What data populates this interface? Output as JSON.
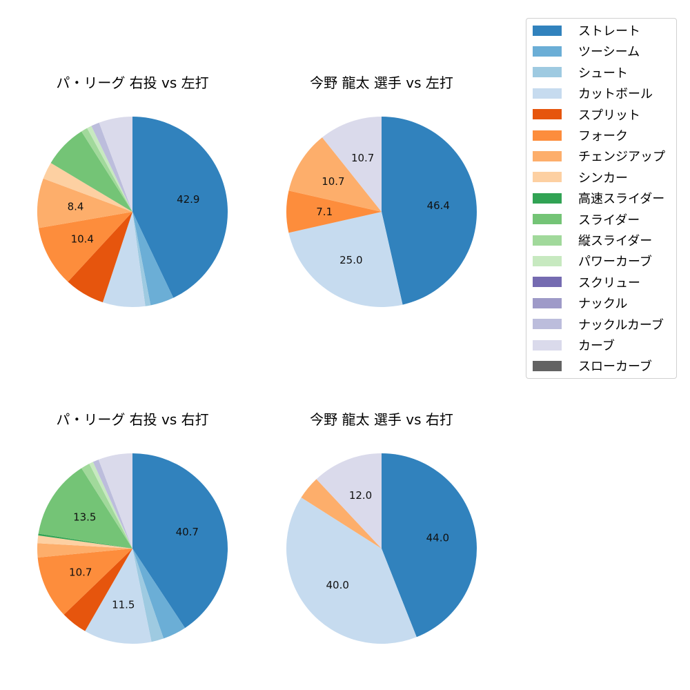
{
  "chart_data": [
    {
      "type": "pie",
      "title": "パ・リーグ 右投 vs 左打",
      "start_angle_deg": 90,
      "direction": "clockwise",
      "categories": [
        "ストレート",
        "ツーシーム",
        "シュート",
        "カットボール",
        "スプリット",
        "フォーク",
        "チェンジアップ",
        "シンカー",
        "スライダー",
        "縦スライダー",
        "パワーカーブ",
        "ナックルカーブ",
        "カーブ"
      ],
      "values": [
        42.9,
        4.0,
        0.9,
        7.2,
        6.8,
        10.4,
        8.4,
        2.9,
        7.4,
        1.1,
        0.8,
        1.4,
        5.7
      ],
      "labels_shown": [
        "42.9",
        "",
        "",
        "",
        "",
        "10.4",
        "8.4",
        "",
        "",
        "",
        "",
        "",
        ""
      ]
    },
    {
      "type": "pie",
      "title": "今野 龍太 選手 vs 左打",
      "start_angle_deg": 90,
      "direction": "clockwise",
      "categories": [
        "ストレート",
        "カットボール",
        "フォーク",
        "チェンジアップ",
        "カーブ"
      ],
      "values": [
        46.4,
        25.0,
        7.1,
        10.7,
        10.7
      ],
      "labels_shown": [
        "46.4",
        "25.0",
        "7.1",
        "10.7",
        "10.7"
      ]
    },
    {
      "type": "pie",
      "title": "パ・リーグ 右投 vs 右打",
      "start_angle_deg": 90,
      "direction": "clockwise",
      "categories": [
        "ストレート",
        "ツーシーム",
        "シュート",
        "カットボール",
        "スプリット",
        "フォーク",
        "チェンジアップ",
        "シンカー",
        "高速スライダー",
        "スライダー",
        "縦スライダー",
        "パワーカーブ",
        "ナックルカーブ",
        "カーブ"
      ],
      "values": [
        40.7,
        4.0,
        2.1,
        11.5,
        4.5,
        10.7,
        2.4,
        1.3,
        0.3,
        13.5,
        1.5,
        0.7,
        1.0,
        5.8
      ],
      "labels_shown": [
        "40.7",
        "",
        "",
        "11.5",
        "",
        "10.7",
        "",
        "",
        "",
        "13.5",
        "",
        "",
        "",
        ""
      ]
    },
    {
      "type": "pie",
      "title": "今野 龍太 選手 vs 右打",
      "start_angle_deg": 90,
      "direction": "clockwise",
      "categories": [
        "ストレート",
        "カットボール",
        "チェンジアップ",
        "カーブ"
      ],
      "values": [
        44.0,
        40.0,
        4.0,
        12.0
      ],
      "labels_shown": [
        "44.0",
        "40.0",
        "",
        "12.0"
      ]
    }
  ],
  "legend": {
    "items": [
      {
        "label": "ストレート",
        "color": "#3182bd"
      },
      {
        "label": "ツーシーム",
        "color": "#6baed6"
      },
      {
        "label": "シュート",
        "color": "#9ecae1"
      },
      {
        "label": "カットボール",
        "color": "#c6dbef"
      },
      {
        "label": "スプリット",
        "color": "#e6550d"
      },
      {
        "label": "フォーク",
        "color": "#fd8d3c"
      },
      {
        "label": "チェンジアップ",
        "color": "#fdae6b"
      },
      {
        "label": "シンカー",
        "color": "#fdd0a2"
      },
      {
        "label": "高速スライダー",
        "color": "#31a354"
      },
      {
        "label": "スライダー",
        "color": "#74c476"
      },
      {
        "label": "縦スライダー",
        "color": "#a1d99b"
      },
      {
        "label": "パワーカーブ",
        "color": "#c7e9c0"
      },
      {
        "label": "スクリュー",
        "color": "#756bb1"
      },
      {
        "label": "ナックル",
        "color": "#9e9ac8"
      },
      {
        "label": "ナックルカーブ",
        "color": "#bcbddc"
      },
      {
        "label": "カーブ",
        "color": "#dadaeb"
      },
      {
        "label": "スローカーブ",
        "color": "#636363"
      }
    ]
  },
  "panels": [
    {
      "title": "パ・リーグ 右投 vs 左打"
    },
    {
      "title": "今野 龍太 選手 vs 左打"
    },
    {
      "title": "パ・リーグ 右投 vs 右打"
    },
    {
      "title": "今野 龍太 選手 vs 右打"
    }
  ]
}
